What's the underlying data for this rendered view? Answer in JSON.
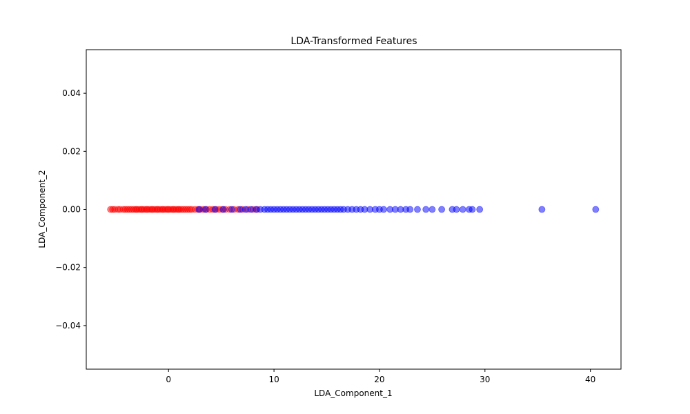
{
  "chart_data": {
    "type": "scatter",
    "title": "LDA-Transformed Features",
    "xlabel": "LDA_Component_1",
    "ylabel": "LDA_Component_2",
    "xlim": [
      -7.8,
      42.9
    ],
    "ylim": [
      -0.055,
      0.055
    ],
    "x_ticks": [
      0,
      10,
      20,
      30,
      40
    ],
    "x_tick_labels": [
      "0",
      "10",
      "20",
      "30",
      "40"
    ],
    "y_ticks": [
      -0.04,
      -0.02,
      0.0,
      0.02,
      0.04
    ],
    "y_tick_labels": [
      "−0.04",
      "−0.02",
      "0.00",
      "0.02",
      "0.04"
    ],
    "grid": false,
    "legend": "none",
    "series": [
      {
        "color": "#ff0000",
        "alpha": 0.5,
        "x": [
          -5.5,
          -5.3,
          -5.1,
          -4.8,
          -4.6,
          -4.3,
          -4.1,
          -3.9,
          -3.7,
          -3.5,
          -3.3,
          -3.1,
          -3.0,
          -2.8,
          -2.6,
          -2.5,
          -2.3,
          -2.1,
          -2.0,
          -1.8,
          -1.6,
          -1.5,
          -1.3,
          -1.1,
          -1.0,
          -0.8,
          -0.6,
          -0.5,
          -0.3,
          -0.1,
          0.0,
          0.2,
          0.4,
          0.5,
          0.7,
          0.9,
          1.0,
          1.2,
          1.4,
          1.6,
          1.8,
          2.0,
          2.2,
          2.5,
          2.8,
          3.0,
          3.3,
          3.6,
          3.9,
          4.2,
          4.5,
          4.8,
          5.1,
          5.4,
          5.8,
          6.2,
          6.6,
          7.0,
          7.5,
          8.0,
          8.4
        ],
        "y": [
          0,
          0,
          0,
          0,
          0,
          0,
          0,
          0,
          0,
          0,
          0,
          0,
          0,
          0,
          0,
          0,
          0,
          0,
          0,
          0,
          0,
          0,
          0,
          0,
          0,
          0,
          0,
          0,
          0,
          0,
          0,
          0,
          0,
          0,
          0,
          0,
          0,
          0,
          0,
          0,
          0,
          0,
          0,
          0,
          0,
          0,
          0,
          0,
          0,
          0,
          0,
          0,
          0,
          0,
          0,
          0,
          0,
          0,
          0,
          0,
          0
        ]
      },
      {
        "color": "#0000ff",
        "alpha": 0.5,
        "x": [
          2.9,
          3.5,
          4.4,
          5.2,
          6.0,
          6.8,
          7.3,
          7.8,
          8.3,
          8.7,
          9.1,
          9.4,
          9.7,
          10.0,
          10.3,
          10.6,
          10.9,
          11.2,
          11.5,
          11.8,
          12.1,
          12.4,
          12.7,
          13.0,
          13.3,
          13.6,
          13.9,
          14.2,
          14.5,
          14.8,
          15.1,
          15.4,
          15.7,
          16.0,
          16.3,
          16.6,
          17.0,
          17.4,
          17.8,
          18.2,
          18.6,
          19.1,
          19.6,
          20.0,
          20.4,
          21.0,
          21.5,
          22.0,
          22.5,
          22.9,
          23.6,
          24.4,
          25.0,
          25.9,
          26.9,
          27.3,
          27.9,
          28.5,
          28.8,
          29.5,
          35.4,
          40.5
        ],
        "y": [
          0,
          0,
          0,
          0,
          0,
          0,
          0,
          0,
          0,
          0,
          0,
          0,
          0,
          0,
          0,
          0,
          0,
          0,
          0,
          0,
          0,
          0,
          0,
          0,
          0,
          0,
          0,
          0,
          0,
          0,
          0,
          0,
          0,
          0,
          0,
          0,
          0,
          0,
          0,
          0,
          0,
          0,
          0,
          0,
          0,
          0,
          0,
          0,
          0,
          0,
          0,
          0,
          0,
          0,
          0,
          0,
          0,
          0,
          0,
          0,
          0,
          0
        ]
      }
    ]
  }
}
